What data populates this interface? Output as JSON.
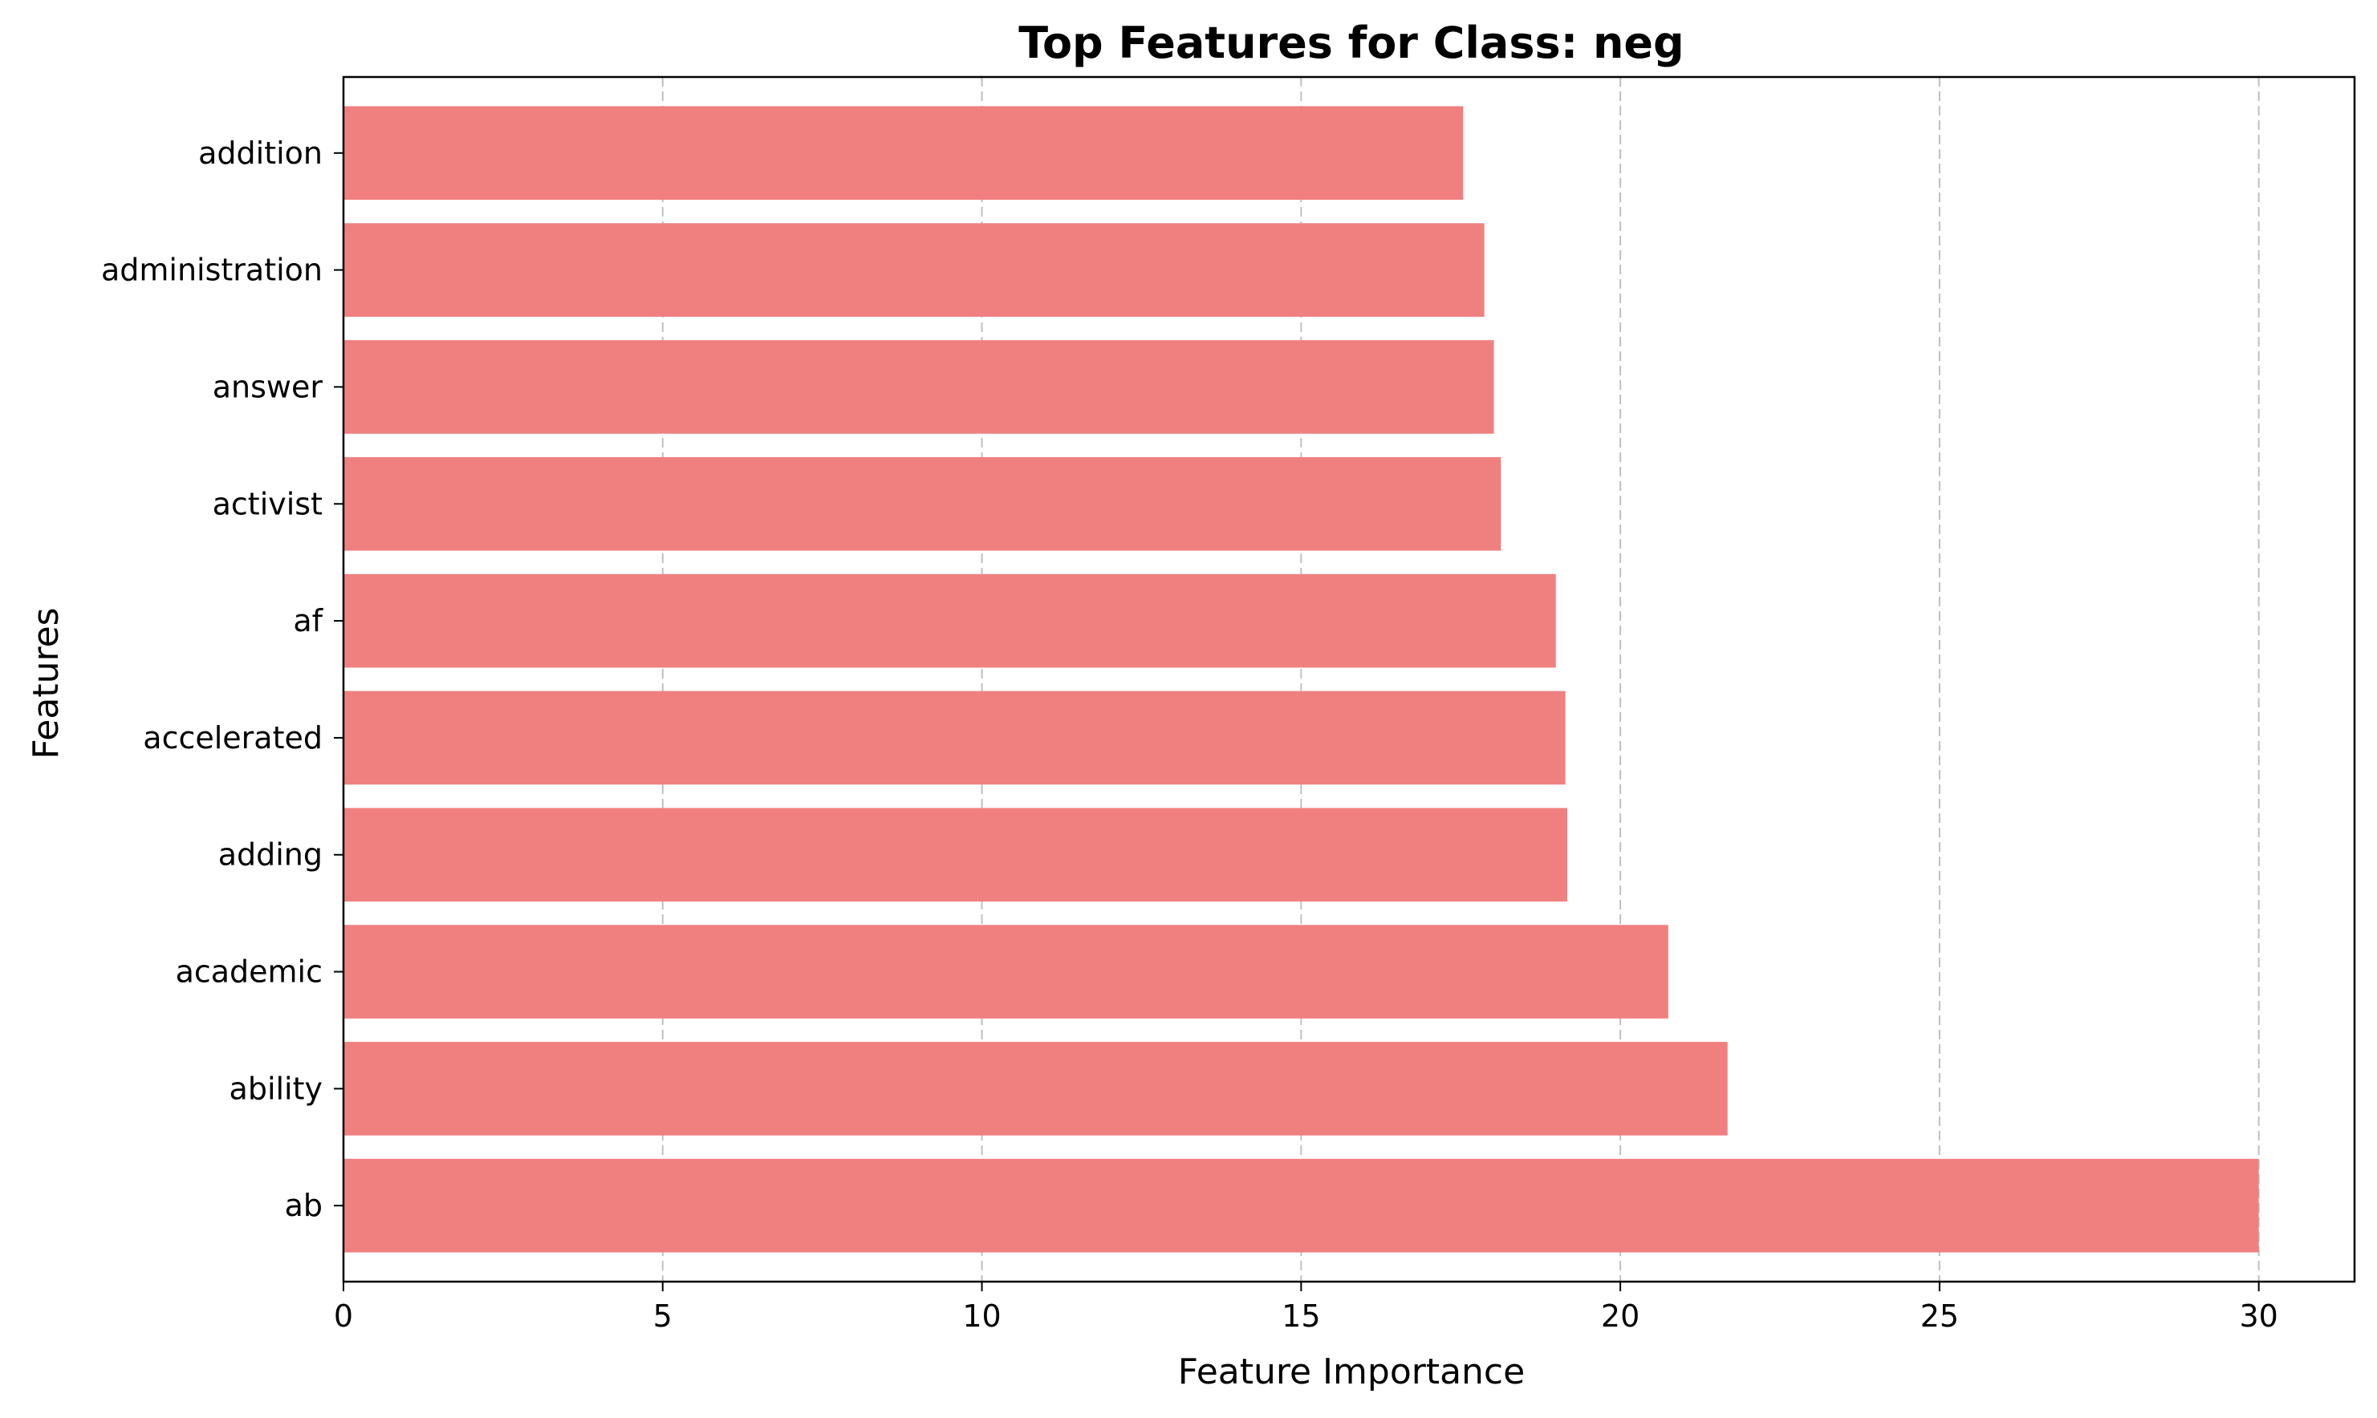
{
  "chart_data": {
    "type": "bar",
    "orientation": "horizontal",
    "title": "Top Features for Class: neg",
    "xlabel": "Feature Importance",
    "ylabel": "Features",
    "categories": [
      "ab",
      "ability",
      "academic",
      "adding",
      "accelerated",
      "af",
      "activist",
      "answer",
      "administration",
      "addition"
    ],
    "values": [
      30.0,
      21.68,
      20.75,
      19.17,
      19.14,
      18.99,
      18.13,
      18.02,
      17.87,
      17.54
    ],
    "xlim": [
      0,
      31.5
    ],
    "xticks": [
      "0",
      "5",
      "10",
      "15",
      "20",
      "25",
      "30"
    ],
    "xtick_values": [
      0,
      5,
      10,
      15,
      20,
      25,
      30
    ],
    "grid": {
      "x": true,
      "y": false,
      "style": "dashed"
    },
    "colors": {
      "bar": "#f08080",
      "grid": "#c0c0c0",
      "axis": "#000000"
    }
  }
}
